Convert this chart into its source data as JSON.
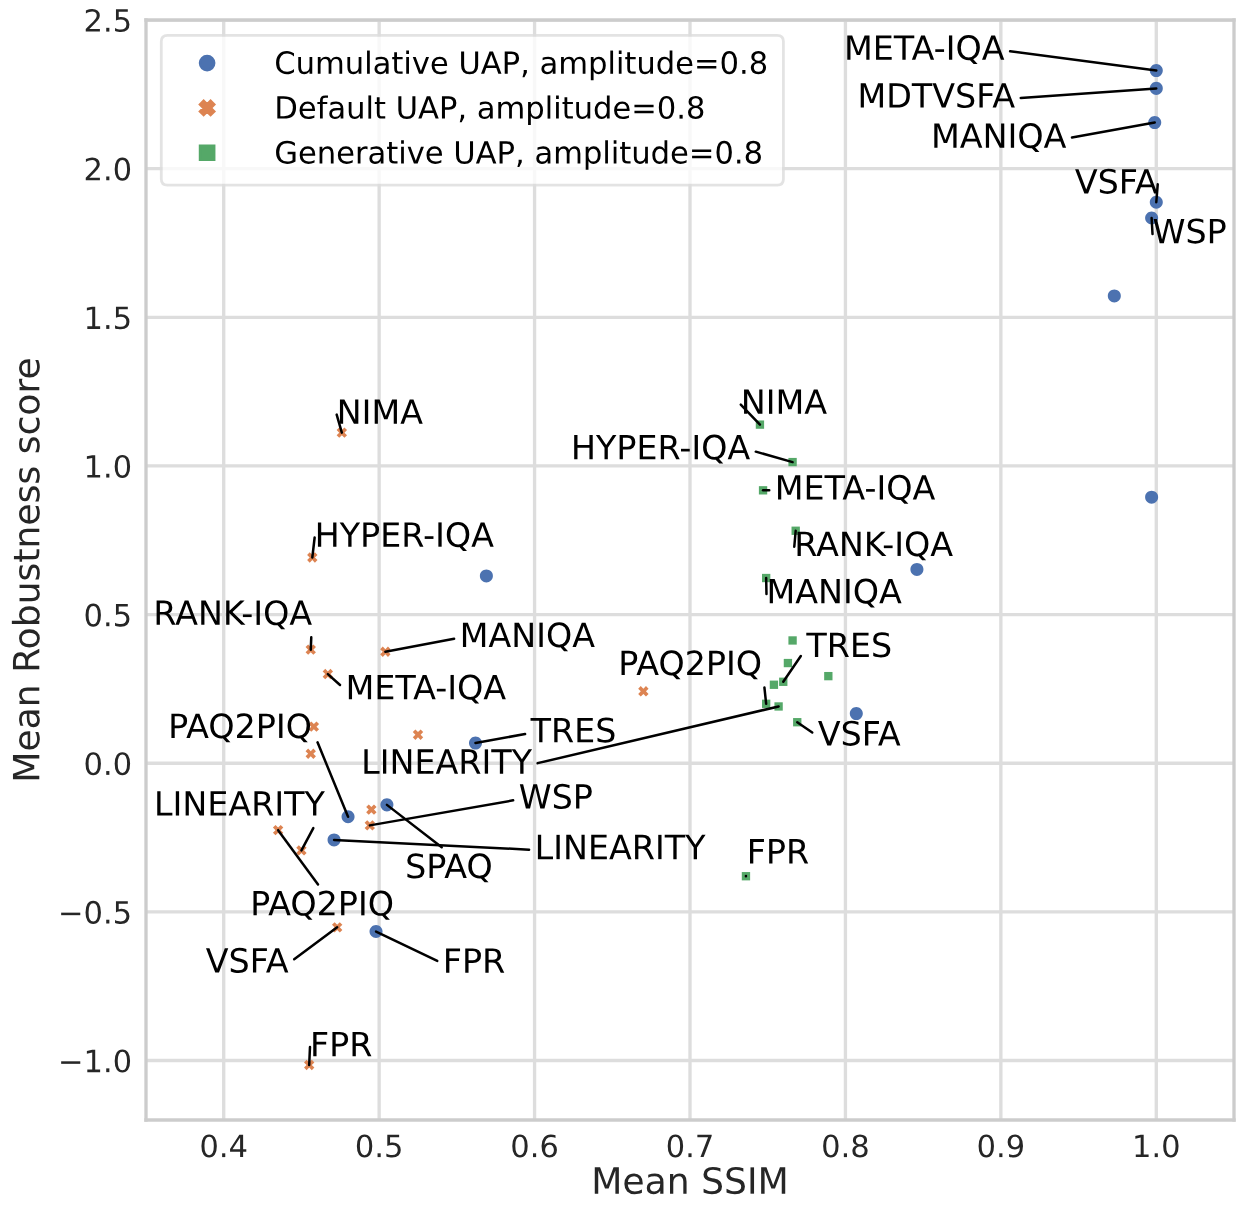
{
  "chart_data": {
    "type": "scatter",
    "xlabel": "Mean SSIM",
    "ylabel": "Mean Robustness score",
    "xlim": [
      0.35,
      1.05
    ],
    "ylim": [
      -1.2,
      2.5
    ],
    "xticks": [
      0.4,
      0.5,
      0.6,
      0.7,
      0.8,
      0.9,
      {
        "value": 1.0,
        "label": "1.0"
      }
    ],
    "yticks": [
      {
        "value": -1.0,
        "label": "−1.0"
      },
      {
        "value": -0.5,
        "label": "−0.5"
      },
      {
        "value": 0.0,
        "label": "0.0"
      },
      0.5,
      {
        "value": 1.0,
        "label": "1.0"
      },
      1.5,
      {
        "value": 2.0,
        "label": "2.0"
      },
      2.5
    ],
    "grid": true,
    "legend": "top left",
    "series": [
      {
        "name": "Cumulative UAP, amplitude=0.8",
        "color": "#4c72b0",
        "marker": "circle",
        "x": [
          1.0,
          1.0,
          0.999,
          1.0,
          0.997,
          0.973,
          0.997,
          0.846,
          0.569,
          0.807,
          0.562,
          0.48,
          0.505,
          0.471,
          0.498
        ],
        "values": [
          2.33,
          2.27,
          2.155,
          1.887,
          1.834,
          1.572,
          0.895,
          0.652,
          0.63,
          0.167,
          0.068,
          -0.18,
          -0.14,
          -0.258,
          -0.566
        ]
      },
      {
        "name": "Default UAP, amplitude=0.8",
        "color": "#dd8452",
        "marker": "cross",
        "x": [
          0.476,
          0.457,
          0.456,
          0.504,
          0.467,
          0.458,
          0.456,
          0.525,
          0.67,
          0.495,
          0.494,
          0.435,
          0.45,
          0.473,
          0.455
        ],
        "values": [
          1.112,
          0.692,
          0.382,
          0.375,
          0.3,
          0.123,
          0.032,
          0.096,
          0.242,
          -0.156,
          -0.209,
          -0.225,
          -0.293,
          -0.552,
          -1.015
        ]
      },
      {
        "name": "Generative UAP, amplitude=0.8",
        "color": "#55a868",
        "marker": "square",
        "x": [
          0.745,
          0.766,
          0.747,
          0.768,
          0.749,
          0.766,
          0.763,
          0.789,
          0.76,
          0.754,
          0.749,
          0.757,
          0.769,
          0.736
        ],
        "values": [
          1.139,
          1.013,
          0.918,
          0.782,
          0.623,
          0.413,
          0.337,
          0.293,
          0.274,
          0.264,
          0.2,
          0.191,
          0.138,
          -0.38
        ]
      }
    ],
    "annotations": [
      {
        "text": "META-IQA",
        "x": 1.0,
        "y": 2.33
      },
      {
        "text": "MDTVSFA",
        "x": 1.0,
        "y": 2.27
      },
      {
        "text": "MANIQA",
        "x": 0.999,
        "y": 2.155
      },
      {
        "text": "VSFA",
        "x": 1.0,
        "y": 1.887
      },
      {
        "text": "WSP",
        "x": 0.997,
        "y": 1.834
      },
      {
        "text": "TRES",
        "x": 0.562,
        "y": 0.068
      },
      {
        "text": "PAQ2PIQ",
        "x": 0.48,
        "y": -0.18
      },
      {
        "text": "SPAQ",
        "x": 0.505,
        "y": -0.14
      },
      {
        "text": "LINEARITY",
        "x": 0.471,
        "y": -0.258
      },
      {
        "text": "FPR",
        "x": 0.498,
        "y": -0.566
      },
      {
        "text": "NIMA",
        "x": 0.476,
        "y": 1.112
      },
      {
        "text": "HYPER-IQA",
        "x": 0.457,
        "y": 0.692
      },
      {
        "text": "RANK-IQA",
        "x": 0.456,
        "y": 0.382
      },
      {
        "text": "MANIQA",
        "x": 0.504,
        "y": 0.375
      },
      {
        "text": "META-IQA",
        "x": 0.467,
        "y": 0.3
      },
      {
        "text": "WSP",
        "x": 0.494,
        "y": -0.209
      },
      {
        "text": "LINEARITY",
        "x": 0.45,
        "y": -0.293
      },
      {
        "text": "PAQ2PIQ",
        "x": 0.435,
        "y": -0.225
      },
      {
        "text": "VSFA",
        "x": 0.473,
        "y": -0.552
      },
      {
        "text": "FPR",
        "x": 0.455,
        "y": -1.015
      },
      {
        "text": "NIMA",
        "x": 0.745,
        "y": 1.139
      },
      {
        "text": "HYPER-IQA",
        "x": 0.766,
        "y": 1.013
      },
      {
        "text": "META-IQA",
        "x": 0.747,
        "y": 0.918
      },
      {
        "text": "RANK-IQA",
        "x": 0.768,
        "y": 0.782
      },
      {
        "text": "MANIQA",
        "x": 0.749,
        "y": 0.623
      },
      {
        "text": "TRES",
        "x": 0.76,
        "y": 0.274
      },
      {
        "text": "PAQ2PIQ",
        "x": 0.749,
        "y": 0.2
      },
      {
        "text": "LINEARITY",
        "x": 0.757,
        "y": 0.191
      },
      {
        "text": "VSFA",
        "x": 0.769,
        "y": 0.138
      },
      {
        "text": "FPR",
        "x": 0.736,
        "y": -0.38
      }
    ]
  }
}
